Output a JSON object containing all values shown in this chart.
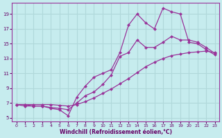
{
  "xlabel": "Windchill (Refroidissement éolien,°C)",
  "ylabel": "",
  "bg_color": "#c6ecee",
  "grid_color": "#b0d8da",
  "line_color": "#993399",
  "xlim": [
    -0.5,
    23.5
  ],
  "ylim": [
    4.5,
    20.5
  ],
  "xticks": [
    0,
    1,
    2,
    3,
    4,
    5,
    6,
    7,
    8,
    9,
    10,
    11,
    12,
    13,
    14,
    15,
    16,
    17,
    18,
    19,
    20,
    21,
    22,
    23
  ],
  "yticks": [
    5,
    7,
    9,
    11,
    13,
    15,
    17,
    19
  ],
  "series1_x": [
    0,
    1,
    2,
    3,
    4,
    5,
    6,
    7,
    8,
    9,
    10,
    11,
    12,
    13,
    14,
    15,
    16,
    17,
    18,
    19,
    20,
    21,
    22,
    23
  ],
  "series1_y": [
    6.8,
    6.8,
    6.8,
    6.8,
    6.8,
    6.7,
    6.6,
    6.8,
    7.2,
    7.7,
    8.3,
    8.9,
    9.6,
    10.3,
    11.1,
    11.9,
    12.5,
    13.0,
    13.4,
    13.6,
    13.8,
    13.9,
    14.0,
    13.8
  ],
  "series2_x": [
    0,
    1,
    2,
    3,
    4,
    5,
    6,
    7,
    8,
    9,
    10,
    11,
    12,
    13,
    14,
    15,
    16,
    17,
    18,
    19,
    20,
    21,
    22,
    23
  ],
  "series2_y": [
    6.8,
    6.8,
    6.6,
    6.6,
    6.4,
    6.3,
    6.1,
    7.0,
    8.0,
    8.5,
    9.5,
    10.8,
    13.3,
    13.8,
    15.5,
    14.5,
    14.5,
    15.2,
    16.0,
    15.5,
    15.5,
    15.2,
    14.5,
    13.7
  ],
  "series3_x": [
    0,
    1,
    2,
    3,
    4,
    5,
    6,
    7,
    8,
    9,
    10,
    11,
    12,
    13,
    14,
    15,
    16,
    17,
    18,
    19,
    20,
    21,
    22,
    23
  ],
  "series3_y": [
    6.8,
    6.6,
    6.6,
    6.6,
    6.3,
    6.1,
    5.3,
    7.8,
    9.3,
    10.5,
    11.0,
    11.5,
    13.8,
    17.5,
    19.0,
    17.8,
    17.0,
    19.8,
    19.3,
    19.0,
    15.2,
    15.0,
    14.2,
    13.5
  ]
}
